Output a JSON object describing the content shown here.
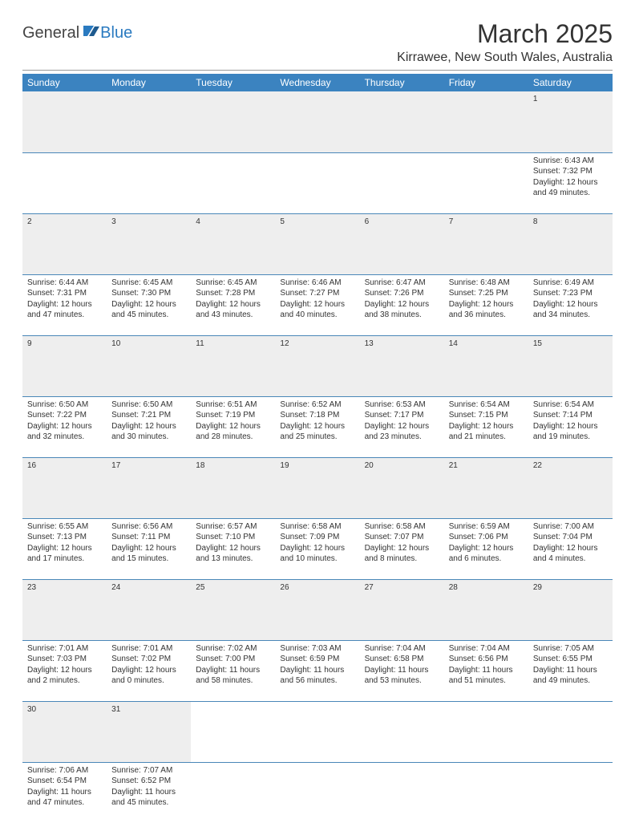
{
  "brand": {
    "part1": "General",
    "part2": "Blue"
  },
  "title": "March 2025",
  "location": "Kirrawee, New South Wales, Australia",
  "colors": {
    "header_bg": "#3b83c0",
    "header_fg": "#ffffff",
    "rule": "#4a87b8",
    "daynum_bg": "#eeeeee",
    "brand_blue": "#2a7ac0"
  },
  "weekdays": [
    "Sunday",
    "Monday",
    "Tuesday",
    "Wednesday",
    "Thursday",
    "Friday",
    "Saturday"
  ],
  "weeks": [
    [
      null,
      null,
      null,
      null,
      null,
      null,
      {
        "n": "1",
        "sunrise": "6:43 AM",
        "sunset": "7:32 PM",
        "day_h": "12",
        "day_m": "49"
      }
    ],
    [
      {
        "n": "2",
        "sunrise": "6:44 AM",
        "sunset": "7:31 PM",
        "day_h": "12",
        "day_m": "47"
      },
      {
        "n": "3",
        "sunrise": "6:45 AM",
        "sunset": "7:30 PM",
        "day_h": "12",
        "day_m": "45"
      },
      {
        "n": "4",
        "sunrise": "6:45 AM",
        "sunset": "7:28 PM",
        "day_h": "12",
        "day_m": "43"
      },
      {
        "n": "5",
        "sunrise": "6:46 AM",
        "sunset": "7:27 PM",
        "day_h": "12",
        "day_m": "40"
      },
      {
        "n": "6",
        "sunrise": "6:47 AM",
        "sunset": "7:26 PM",
        "day_h": "12",
        "day_m": "38"
      },
      {
        "n": "7",
        "sunrise": "6:48 AM",
        "sunset": "7:25 PM",
        "day_h": "12",
        "day_m": "36"
      },
      {
        "n": "8",
        "sunrise": "6:49 AM",
        "sunset": "7:23 PM",
        "day_h": "12",
        "day_m": "34"
      }
    ],
    [
      {
        "n": "9",
        "sunrise": "6:50 AM",
        "sunset": "7:22 PM",
        "day_h": "12",
        "day_m": "32"
      },
      {
        "n": "10",
        "sunrise": "6:50 AM",
        "sunset": "7:21 PM",
        "day_h": "12",
        "day_m": "30"
      },
      {
        "n": "11",
        "sunrise": "6:51 AM",
        "sunset": "7:19 PM",
        "day_h": "12",
        "day_m": "28"
      },
      {
        "n": "12",
        "sunrise": "6:52 AM",
        "sunset": "7:18 PM",
        "day_h": "12",
        "day_m": "25"
      },
      {
        "n": "13",
        "sunrise": "6:53 AM",
        "sunset": "7:17 PM",
        "day_h": "12",
        "day_m": "23"
      },
      {
        "n": "14",
        "sunrise": "6:54 AM",
        "sunset": "7:15 PM",
        "day_h": "12",
        "day_m": "21"
      },
      {
        "n": "15",
        "sunrise": "6:54 AM",
        "sunset": "7:14 PM",
        "day_h": "12",
        "day_m": "19"
      }
    ],
    [
      {
        "n": "16",
        "sunrise": "6:55 AM",
        "sunset": "7:13 PM",
        "day_h": "12",
        "day_m": "17"
      },
      {
        "n": "17",
        "sunrise": "6:56 AM",
        "sunset": "7:11 PM",
        "day_h": "12",
        "day_m": "15"
      },
      {
        "n": "18",
        "sunrise": "6:57 AM",
        "sunset": "7:10 PM",
        "day_h": "12",
        "day_m": "13"
      },
      {
        "n": "19",
        "sunrise": "6:58 AM",
        "sunset": "7:09 PM",
        "day_h": "12",
        "day_m": "10"
      },
      {
        "n": "20",
        "sunrise": "6:58 AM",
        "sunset": "7:07 PM",
        "day_h": "12",
        "day_m": "8"
      },
      {
        "n": "21",
        "sunrise": "6:59 AM",
        "sunset": "7:06 PM",
        "day_h": "12",
        "day_m": "6"
      },
      {
        "n": "22",
        "sunrise": "7:00 AM",
        "sunset": "7:04 PM",
        "day_h": "12",
        "day_m": "4"
      }
    ],
    [
      {
        "n": "23",
        "sunrise": "7:01 AM",
        "sunset": "7:03 PM",
        "day_h": "12",
        "day_m": "2"
      },
      {
        "n": "24",
        "sunrise": "7:01 AM",
        "sunset": "7:02 PM",
        "day_h": "12",
        "day_m": "0"
      },
      {
        "n": "25",
        "sunrise": "7:02 AM",
        "sunset": "7:00 PM",
        "day_h": "11",
        "day_m": "58"
      },
      {
        "n": "26",
        "sunrise": "7:03 AM",
        "sunset": "6:59 PM",
        "day_h": "11",
        "day_m": "56"
      },
      {
        "n": "27",
        "sunrise": "7:04 AM",
        "sunset": "6:58 PM",
        "day_h": "11",
        "day_m": "53"
      },
      {
        "n": "28",
        "sunrise": "7:04 AM",
        "sunset": "6:56 PM",
        "day_h": "11",
        "day_m": "51"
      },
      {
        "n": "29",
        "sunrise": "7:05 AM",
        "sunset": "6:55 PM",
        "day_h": "11",
        "day_m": "49"
      }
    ],
    [
      {
        "n": "30",
        "sunrise": "7:06 AM",
        "sunset": "6:54 PM",
        "day_h": "11",
        "day_m": "47"
      },
      {
        "n": "31",
        "sunrise": "7:07 AM",
        "sunset": "6:52 PM",
        "day_h": "11",
        "day_m": "45"
      },
      null,
      null,
      null,
      null,
      null
    ]
  ]
}
